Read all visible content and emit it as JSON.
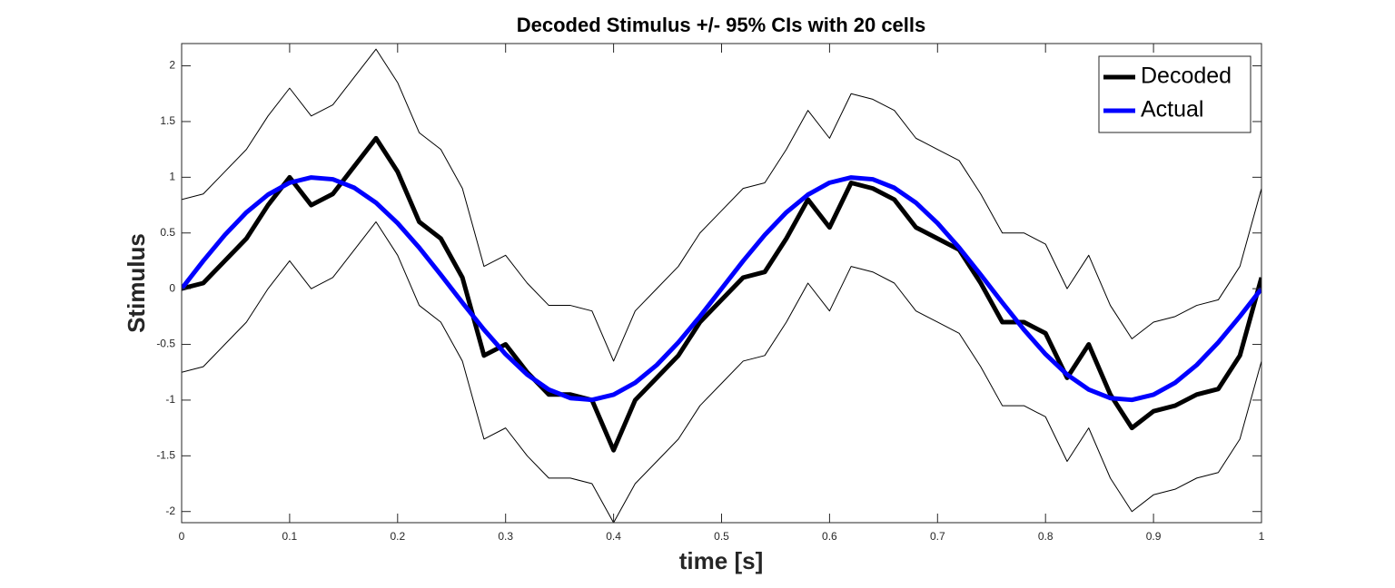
{
  "chart_data": {
    "type": "line",
    "title": "Decoded Stimulus +/- 95% CIs with 20 cells",
    "x_label": "time [s]",
    "y_label": "Stimulus",
    "x": [
      0,
      0.02,
      0.04,
      0.06,
      0.08,
      0.1,
      0.12,
      0.14,
      0.16,
      0.18,
      0.2,
      0.22,
      0.24,
      0.26,
      0.28,
      0.3,
      0.32,
      0.34,
      0.36,
      0.38,
      0.4,
      0.42,
      0.44,
      0.46,
      0.48,
      0.5,
      0.52,
      0.54,
      0.56,
      0.58,
      0.6,
      0.62,
      0.64,
      0.66,
      0.68,
      0.7,
      0.72,
      0.74,
      0.76,
      0.78,
      0.8,
      0.82,
      0.84,
      0.86,
      0.88,
      0.9,
      0.92,
      0.94,
      0.96,
      0.98,
      1
    ],
    "series": [
      {
        "name": "Decoded",
        "color": "#000000",
        "values": [
          0,
          0.05,
          0.25,
          0.45,
          0.75,
          1.0,
          0.75,
          0.85,
          1.1,
          1.35,
          1.05,
          0.6,
          0.45,
          0.1,
          -0.6,
          -0.5,
          -0.75,
          -0.95,
          -0.95,
          -1.0,
          -1.45,
          -1.0,
          -0.8,
          -0.6,
          -0.3,
          -0.1,
          0.1,
          0.15,
          0.45,
          0.8,
          0.55,
          0.95,
          0.9,
          0.8,
          0.55,
          0.45,
          0.35,
          0.05,
          -0.3,
          -0.3,
          -0.4,
          -0.8,
          -0.5,
          -0.95,
          -1.25,
          -1.1,
          -1.05,
          -0.95,
          -0.9,
          -0.6,
          0.1
        ]
      },
      {
        "name": "Actual",
        "color": "#0000ff",
        "values": [
          0,
          0.249,
          0.482,
          0.685,
          0.844,
          0.951,
          0.998,
          0.982,
          0.905,
          0.771,
          0.588,
          0.368,
          0.125,
          -0.125,
          -0.368,
          -0.588,
          -0.771,
          -0.905,
          -0.982,
          -0.998,
          -0.951,
          -0.844,
          -0.685,
          -0.482,
          -0.249,
          0,
          0.249,
          0.482,
          0.685,
          0.844,
          0.951,
          0.998,
          0.982,
          0.905,
          0.771,
          0.588,
          0.368,
          0.125,
          -0.125,
          -0.368,
          -0.588,
          -0.771,
          -0.905,
          -0.982,
          -0.998,
          -0.951,
          -0.844,
          -0.685,
          -0.482,
          -0.249,
          0
        ]
      },
      {
        "color": "#000000",
        "values": [
          0.8,
          0.85,
          1.05,
          1.25,
          1.55,
          1.8,
          1.55,
          1.65,
          1.9,
          2.15,
          1.85,
          1.4,
          1.25,
          0.9,
          0.2,
          0.3,
          0.05,
          -0.15,
          -0.15,
          -0.2,
          -0.65,
          -0.2,
          0,
          0.2,
          0.5,
          0.7,
          0.9,
          0.95,
          1.25,
          1.6,
          1.35,
          1.75,
          1.7,
          1.6,
          1.35,
          1.25,
          1.15,
          0.85,
          0.5,
          0.5,
          0.4,
          0,
          0.3,
          -0.15,
          -0.45,
          -0.3,
          -0.25,
          -0.15,
          -0.1,
          0.2,
          0.9
        ]
      },
      {
        "color": "#000000",
        "values": [
          -0.75,
          -0.7,
          -0.5,
          -0.3,
          0,
          0.25,
          0,
          0.1,
          0.35,
          0.6,
          0.3,
          -0.15,
          -0.3,
          -0.65,
          -1.35,
          -1.25,
          -1.5,
          -1.7,
          -1.7,
          -1.75,
          -2.1,
          -1.75,
          -1.55,
          -1.35,
          -1.05,
          -0.85,
          -0.65,
          -0.6,
          -0.3,
          0.05,
          -0.2,
          0.2,
          0.15,
          0.05,
          -0.2,
          -0.3,
          -0.4,
          -0.7,
          -1.05,
          -1.05,
          -1.15,
          -1.55,
          -1.25,
          -1.7,
          -2.0,
          -1.85,
          -1.8,
          -1.7,
          -1.65,
          -1.35,
          -0.65
        ]
      }
    ],
    "xlim": [
      0,
      1
    ],
    "xticks": [
      0,
      0.1,
      0.2,
      0.3,
      0.4,
      0.5,
      0.6,
      0.7,
      0.8,
      0.9,
      1
    ],
    "ylim": [
      -2.1,
      2.2
    ],
    "yticks": [
      -2,
      -1.5,
      -1,
      -0.5,
      0,
      0.5,
      1,
      1.5,
      2
    ],
    "grid": false,
    "legend": "northeast"
  }
}
